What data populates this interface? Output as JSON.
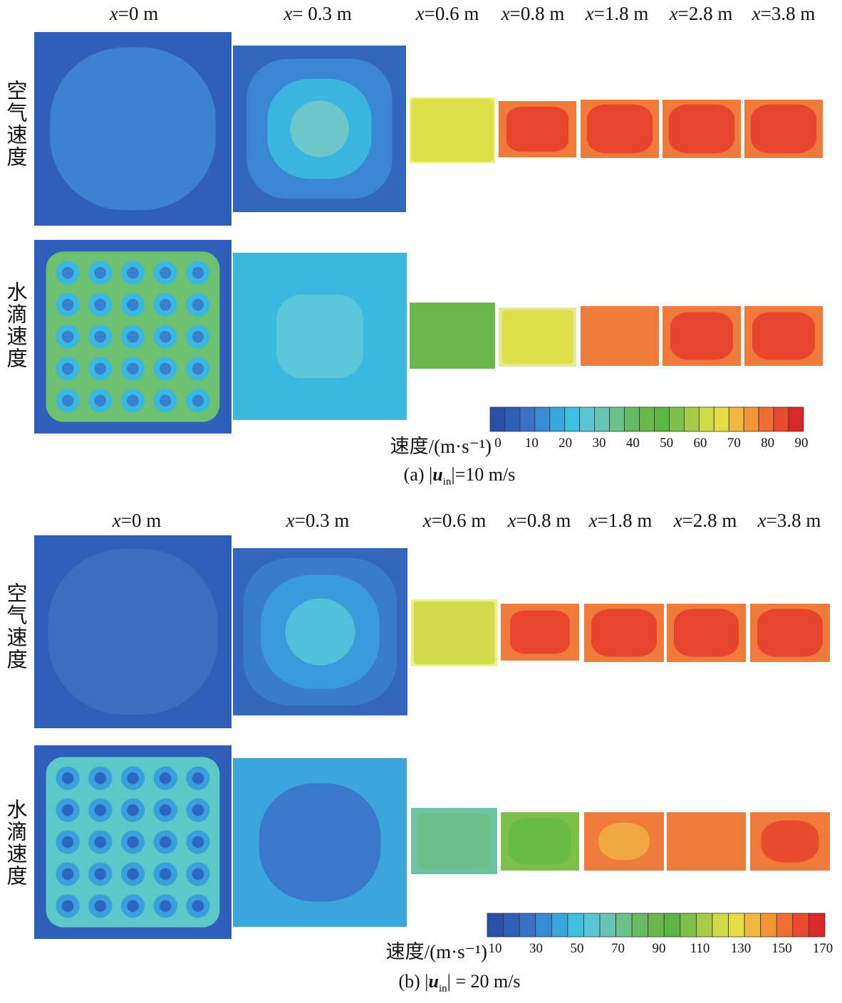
{
  "panels": [
    {
      "columns": [
        "x=0 m",
        "x= 0.3 m",
        "x=0.6 m",
        "x=0.8 m",
        "x=1.8 m",
        "x=2.8 m",
        "x=3.8 m"
      ],
      "rows": [
        "空气速度",
        "水滴速度"
      ],
      "colorbar": {
        "label": "速度/(m·s⁻¹)",
        "ticks": [
          0,
          10,
          20,
          30,
          40,
          50,
          60,
          70,
          80,
          90
        ]
      },
      "caption": [
        "(a) |",
        "u",
        "in",
        "|=10 m/s"
      ]
    },
    {
      "columns": [
        "x=0 m",
        "x=0.3 m",
        "x=0.6 m",
        "x=0.8 m",
        "x=1.8 m",
        "x=2.8 m",
        "x=3.8 m"
      ],
      "rows": [
        "空气速度",
        "水滴速度"
      ],
      "colorbar": {
        "label": "速度/(m·s⁻¹)",
        "ticks": [
          10,
          30,
          50,
          70,
          90,
          110,
          130,
          150,
          170
        ]
      },
      "caption": [
        "(b) |",
        "u",
        "in",
        "| = 20 m/s"
      ]
    }
  ]
}
